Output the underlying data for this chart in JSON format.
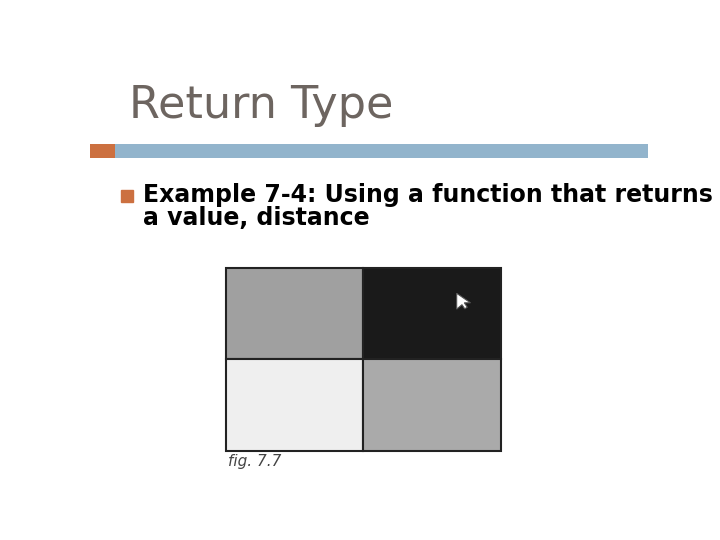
{
  "title": "Return Type",
  "title_color": "#6d6560",
  "title_fontsize": 32,
  "background_color": "#ffffff",
  "header_bar_color": "#92b4cc",
  "header_bar_orange": "#cc7040",
  "bullet_text_line1": "Example 7-4: Using a function that returns",
  "bullet_text_line2": "a value, distance",
  "bullet_color": "#000000",
  "bullet_fontsize": 17,
  "bullet_square_color": "#cc7040",
  "fig_label": "fig. 7.7",
  "fig_label_fontsize": 11,
  "grid_colors": {
    "top_left": "#a0a0a0",
    "top_right": "#1a1a1a",
    "bottom_left": "#efefef",
    "bottom_right": "#aaaaaa"
  },
  "grid_outline_color": "#222222",
  "cursor_color": "#ffffff"
}
